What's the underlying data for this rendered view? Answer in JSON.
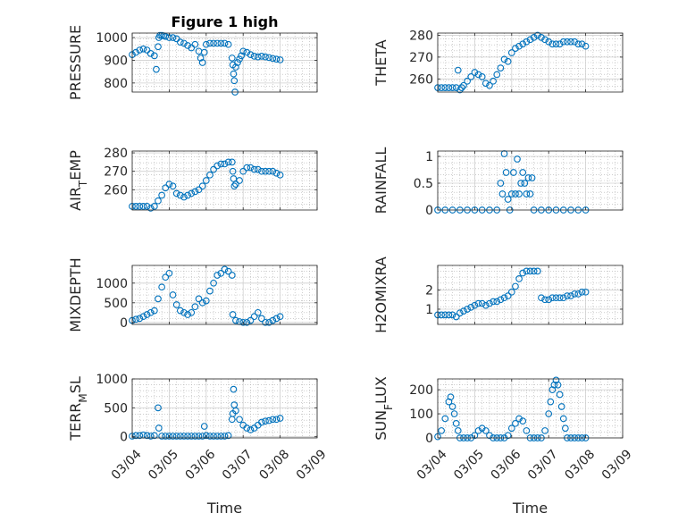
{
  "figure_title": "Figure 1 high",
  "chart_data": [
    {
      "type": "scatter",
      "id": "pressure",
      "ylabel": "PRESSURE",
      "ylim": [
        760,
        1020
      ],
      "yticks": [
        800,
        900,
        1000
      ],
      "xlim": [
        0,
        5
      ],
      "xticks": [
        "03/04",
        "03/05",
        "03/06",
        "03/07",
        "03/08",
        "03/09"
      ],
      "xlabel": "",
      "grid": true,
      "x": [
        0,
        0.1,
        0.2,
        0.3,
        0.4,
        0.5,
        0.6,
        0.65,
        0.7,
        0.72,
        0.75,
        0.8,
        0.85,
        0.9,
        1.0,
        1.1,
        1.2,
        1.3,
        1.4,
        1.5,
        1.6,
        1.7,
        1.8,
        1.85,
        1.9,
        1.95,
        2.0,
        2.1,
        2.2,
        2.3,
        2.4,
        2.5,
        2.6,
        2.7,
        2.72,
        2.74,
        2.76,
        2.78,
        2.8,
        2.85,
        2.9,
        2.95,
        3.0,
        3.1,
        3.2,
        3.3,
        3.4,
        3.5,
        3.6,
        3.7,
        3.8,
        3.9,
        4.0
      ],
      "y": [
        925,
        935,
        945,
        950,
        945,
        930,
        920,
        860,
        960,
        1000,
        1010,
        1010,
        1008,
        1005,
        1000,
        1000,
        995,
        980,
        975,
        965,
        955,
        970,
        940,
        910,
        890,
        935,
        970,
        975,
        975,
        975,
        975,
        975,
        970,
        910,
        880,
        840,
        810,
        760,
        870,
        890,
        905,
        920,
        940,
        935,
        925,
        918,
        915,
        918,
        915,
        912,
        908,
        905,
        902
      ]
    },
    {
      "type": "scatter",
      "id": "theta",
      "ylabel": "THETA",
      "ylim": [
        254,
        281
      ],
      "yticks": [
        260,
        270,
        280
      ],
      "xlim": [
        0,
        5
      ],
      "xticks": [
        "03/04",
        "03/05",
        "03/06",
        "03/07",
        "03/08",
        "03/09"
      ],
      "xlabel": "",
      "grid": true,
      "x": [
        0,
        0.1,
        0.2,
        0.3,
        0.4,
        0.5,
        0.55,
        0.6,
        0.65,
        0.7,
        0.8,
        0.9,
        1.0,
        1.1,
        1.2,
        1.3,
        1.4,
        1.5,
        1.6,
        1.7,
        1.8,
        1.9,
        2.0,
        2.1,
        2.2,
        2.3,
        2.4,
        2.5,
        2.6,
        2.7,
        2.8,
        2.9,
        3.0,
        3.1,
        3.2,
        3.3,
        3.4,
        3.5,
        3.6,
        3.7,
        3.8,
        3.9,
        4.0
      ],
      "y": [
        256,
        256,
        256,
        256,
        256,
        256,
        264,
        255,
        256,
        257,
        259,
        261,
        263,
        262,
        261,
        258,
        257,
        259,
        262,
        265,
        269,
        268,
        272,
        274,
        275,
        276,
        277,
        278,
        279,
        280,
        279,
        278,
        277,
        276,
        276,
        276,
        277,
        277,
        277,
        277,
        276,
        276,
        275
      ]
    },
    {
      "type": "scatter",
      "id": "airtemp",
      "ylabel": "AIR_TEMP",
      "ylim": [
        249,
        281
      ],
      "yticks": [
        260,
        270,
        280
      ],
      "xlim": [
        0,
        5
      ],
      "xticks": [
        "03/04",
        "03/05",
        "03/06",
        "03/07",
        "03/08",
        "03/09"
      ],
      "xlabel": "",
      "grid": true,
      "x": [
        0,
        0.1,
        0.2,
        0.3,
        0.4,
        0.5,
        0.6,
        0.7,
        0.8,
        0.9,
        1.0,
        1.1,
        1.2,
        1.3,
        1.4,
        1.5,
        1.6,
        1.7,
        1.8,
        1.9,
        2.0,
        2.1,
        2.2,
        2.3,
        2.4,
        2.5,
        2.6,
        2.7,
        2.72,
        2.74,
        2.76,
        2.8,
        2.9,
        3.0,
        3.1,
        3.2,
        3.3,
        3.4,
        3.5,
        3.6,
        3.7,
        3.8,
        3.9,
        4.0
      ],
      "y": [
        251,
        251,
        251,
        251,
        251,
        250,
        251,
        254,
        257,
        261,
        263,
        262,
        258,
        257,
        256,
        257,
        258,
        259,
        260,
        262,
        265,
        268,
        271,
        273,
        274,
        274,
        275,
        275,
        270,
        266,
        262,
        263,
        265,
        270,
        272,
        272,
        271,
        271,
        270,
        270,
        270,
        270,
        269,
        268
      ]
    },
    {
      "type": "scatter",
      "id": "rainfall",
      "ylabel": "RAINFALL",
      "ylim": [
        0,
        1.1
      ],
      "yticks": [
        0,
        0.5,
        1
      ],
      "xlim": [
        0,
        5
      ],
      "xticks": [
        "03/04",
        "03/05",
        "03/06",
        "03/07",
        "03/08",
        "03/09"
      ],
      "xlabel": "",
      "grid": true,
      "x": [
        0,
        0.2,
        0.4,
        0.6,
        0.8,
        1.0,
        1.2,
        1.4,
        1.6,
        1.7,
        1.75,
        1.8,
        1.85,
        1.9,
        1.95,
        2.0,
        2.05,
        2.1,
        2.15,
        2.2,
        2.25,
        2.3,
        2.35,
        2.4,
        2.45,
        2.5,
        2.55,
        2.6,
        2.8,
        3.0,
        3.2,
        3.4,
        3.6,
        3.8,
        4.0
      ],
      "y": [
        0,
        0,
        0,
        0,
        0,
        0,
        0,
        0,
        0,
        0.5,
        0.3,
        1.05,
        0.7,
        0.2,
        0,
        0.3,
        0.7,
        0.3,
        0.95,
        0.3,
        0.5,
        0.7,
        0.5,
        0.3,
        0.6,
        0.3,
        0.6,
        0,
        0,
        0,
        0,
        0,
        0,
        0,
        0
      ]
    },
    {
      "type": "scatter",
      "id": "mixdepth",
      "ylabel": "MIXDEPTH",
      "ylim": [
        -50,
        1450
      ],
      "yticks": [
        0,
        500,
        1000
      ],
      "xlim": [
        0,
        5
      ],
      "xticks": [
        "03/04",
        "03/05",
        "03/06",
        "03/07",
        "03/08",
        "03/09"
      ],
      "xlabel": "",
      "grid": true,
      "x": [
        0,
        0.1,
        0.2,
        0.3,
        0.4,
        0.5,
        0.6,
        0.7,
        0.8,
        0.9,
        1.0,
        1.1,
        1.2,
        1.3,
        1.4,
        1.5,
        1.6,
        1.7,
        1.8,
        1.9,
        2.0,
        2.1,
        2.2,
        2.3,
        2.4,
        2.5,
        2.6,
        2.7,
        2.72,
        2.8,
        2.9,
        3.0,
        3.1,
        3.2,
        3.3,
        3.4,
        3.5,
        3.6,
        3.7,
        3.8,
        3.9,
        4.0
      ],
      "y": [
        50,
        80,
        100,
        150,
        200,
        250,
        300,
        600,
        900,
        1150,
        1250,
        700,
        450,
        300,
        250,
        200,
        250,
        400,
        600,
        500,
        550,
        800,
        1000,
        1200,
        1250,
        1350,
        1300,
        1200,
        200,
        50,
        20,
        0,
        0,
        50,
        150,
        250,
        100,
        0,
        0,
        50,
        100,
        150
      ]
    },
    {
      "type": "scatter",
      "id": "h2omixra",
      "ylabel": "H2OMIXRA",
      "ylim": [
        0.2,
        3.3
      ],
      "yticks": [
        1,
        2
      ],
      "xlim": [
        0,
        5
      ],
      "xticks": [
        "03/04",
        "03/05",
        "03/06",
        "03/07",
        "03/08",
        "03/09"
      ],
      "xlabel": "",
      "grid": true,
      "x": [
        0,
        0.1,
        0.2,
        0.3,
        0.4,
        0.5,
        0.6,
        0.7,
        0.8,
        0.9,
        1.0,
        1.1,
        1.2,
        1.3,
        1.4,
        1.5,
        1.6,
        1.7,
        1.8,
        1.9,
        2.0,
        2.1,
        2.2,
        2.3,
        2.4,
        2.5,
        2.6,
        2.7,
        2.8,
        2.9,
        3.0,
        3.1,
        3.2,
        3.3,
        3.4,
        3.5,
        3.6,
        3.7,
        3.8,
        3.9,
        4.0
      ],
      "y": [
        0.7,
        0.7,
        0.7,
        0.7,
        0.7,
        0.6,
        0.8,
        0.9,
        1.0,
        1.1,
        1.2,
        1.3,
        1.3,
        1.2,
        1.3,
        1.4,
        1.4,
        1.5,
        1.6,
        1.7,
        1.9,
        2.2,
        2.6,
        2.9,
        3.0,
        3.0,
        3.0,
        3.0,
        1.6,
        1.5,
        1.5,
        1.6,
        1.6,
        1.6,
        1.6,
        1.7,
        1.7,
        1.8,
        1.8,
        1.9,
        1.9
      ]
    },
    {
      "type": "scatter",
      "id": "terrmsl",
      "ylabel": "TERR_MSL",
      "ylim": [
        -20,
        1000
      ],
      "yticks": [
        0,
        500,
        1000
      ],
      "xlim": [
        0,
        5
      ],
      "xticks": [
        "03/04",
        "03/05",
        "03/06",
        "03/07",
        "03/08",
        "03/09"
      ],
      "xlabel": "Time",
      "grid": true,
      "x": [
        0,
        0.1,
        0.2,
        0.3,
        0.4,
        0.5,
        0.6,
        0.7,
        0.72,
        0.8,
        0.9,
        1.0,
        1.1,
        1.2,
        1.3,
        1.4,
        1.5,
        1.6,
        1.7,
        1.8,
        1.9,
        1.95,
        2.0,
        2.1,
        2.2,
        2.3,
        2.4,
        2.5,
        2.6,
        2.7,
        2.72,
        2.74,
        2.76,
        2.8,
        2.9,
        3.0,
        3.1,
        3.2,
        3.3,
        3.4,
        3.5,
        3.6,
        3.7,
        3.8,
        3.9,
        4.0
      ],
      "y": [
        10,
        20,
        20,
        30,
        20,
        10,
        20,
        500,
        150,
        10,
        10,
        10,
        10,
        10,
        10,
        10,
        10,
        10,
        10,
        10,
        10,
        180,
        20,
        10,
        10,
        10,
        10,
        10,
        20,
        300,
        400,
        820,
        550,
        450,
        300,
        200,
        150,
        120,
        150,
        200,
        250,
        270,
        280,
        300,
        300,
        320
      ]
    },
    {
      "type": "scatter",
      "id": "sunflux",
      "ylabel": "SUN_FLUX",
      "ylim": [
        0,
        245
      ],
      "yticks": [
        0,
        100,
        200
      ],
      "xlim": [
        0,
        5
      ],
      "xticks": [
        "03/04",
        "03/05",
        "03/06",
        "03/07",
        "03/08",
        "03/09"
      ],
      "xlabel": "Time",
      "grid": true,
      "x": [
        0,
        0.1,
        0.2,
        0.3,
        0.35,
        0.4,
        0.45,
        0.5,
        0.55,
        0.6,
        0.7,
        0.8,
        0.9,
        1.0,
        1.1,
        1.2,
        1.3,
        1.4,
        1.5,
        1.6,
        1.7,
        1.8,
        1.9,
        2.0,
        2.1,
        2.2,
        2.3,
        2.4,
        2.5,
        2.6,
        2.7,
        2.8,
        2.9,
        3.0,
        3.05,
        3.1,
        3.15,
        3.2,
        3.25,
        3.3,
        3.35,
        3.4,
        3.45,
        3.5,
        3.6,
        3.7,
        3.8,
        3.9,
        4.0
      ],
      "y": [
        5,
        30,
        80,
        150,
        170,
        130,
        100,
        60,
        30,
        0,
        0,
        0,
        0,
        10,
        30,
        40,
        30,
        10,
        0,
        0,
        0,
        0,
        10,
        40,
        60,
        80,
        70,
        30,
        0,
        0,
        0,
        0,
        30,
        100,
        150,
        200,
        220,
        240,
        220,
        180,
        130,
        80,
        40,
        0,
        0,
        0,
        0,
        0,
        0
      ]
    }
  ]
}
